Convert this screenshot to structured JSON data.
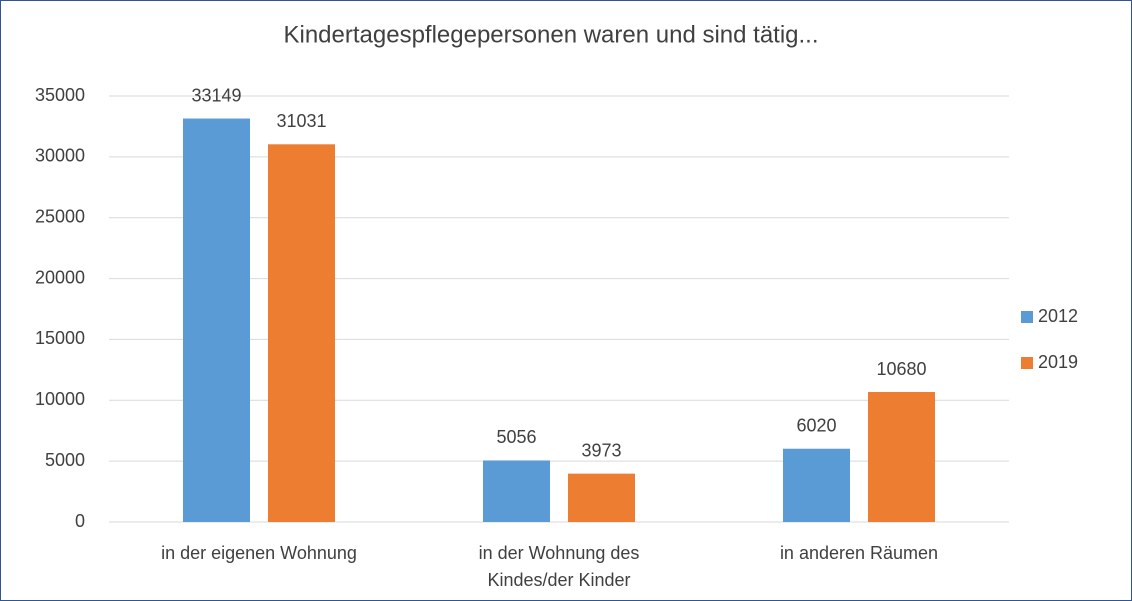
{
  "chart_data": {
    "type": "bar",
    "title": "Kindertagespflegepersonen waren und sind tätig...",
    "categories": [
      "in der eigenen Wohnung",
      "in der Wohnung des Kindes/der Kinder",
      "in anderen Räumen"
    ],
    "series": [
      {
        "name": "2012",
        "color": "#5b9bd5",
        "values": [
          33149,
          5056,
          6020
        ]
      },
      {
        "name": "2019",
        "color": "#ed7d31",
        "values": [
          31031,
          3973,
          10680
        ]
      }
    ],
    "ylim": [
      0,
      35000
    ],
    "yticks": [
      0,
      5000,
      10000,
      15000,
      20000,
      25000,
      30000,
      35000
    ],
    "grid": true,
    "legend": "right"
  }
}
